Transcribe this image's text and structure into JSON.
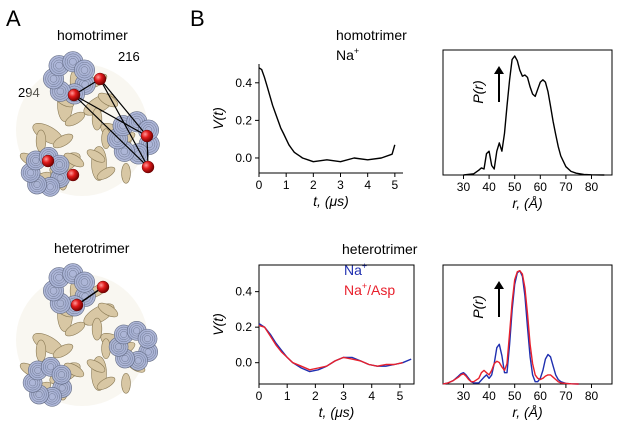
{
  "panels": {
    "a_label": "A",
    "b_label": "B",
    "homo_title": "homotrimer",
    "hetero_title": "heterotrimer",
    "homo_cond": "Na",
    "homo_cond_sup": "+",
    "hetero_cond_1": "Na",
    "hetero_cond_1_sup": "+",
    "hetero_cond_2": "Na",
    "hetero_cond_2_sup": "+",
    "hetero_cond_2_suffix": "/Asp",
    "residue_1": "216",
    "residue_2": "294"
  },
  "colors": {
    "na": "#1f2fb0",
    "na_asp": "#e8202c",
    "homo_trace": "#000000",
    "helix_blue": "#a9b3d6",
    "helix_tan": "#d8c7a4",
    "spin_label": "#d11a1a"
  },
  "chart_data": [
    {
      "id": "homo_time",
      "type": "line",
      "xlabel": "t, (μs)",
      "ylabel": "V(t)",
      "xlim": [
        0,
        5.3
      ],
      "ylim": [
        -0.08,
        0.5
      ],
      "xticks": [
        "0",
        "1",
        "2",
        "3",
        "4",
        "5"
      ],
      "yticks": [
        "0.0",
        "0.2",
        "0.4"
      ],
      "series": [
        {
          "x": [
            0,
            0.1,
            0.2,
            0.3,
            0.4,
            0.5,
            0.6,
            0.7,
            0.8,
            0.9,
            1.0,
            1.1,
            1.2,
            1.3,
            1.4,
            1.5,
            1.6,
            1.8,
            2.0,
            2.5,
            3.0,
            3.5,
            4.0,
            4.5,
            4.9,
            5.0
          ],
          "y": [
            0.48,
            0.47,
            0.43,
            0.38,
            0.33,
            0.28,
            0.24,
            0.2,
            0.16,
            0.13,
            0.1,
            0.07,
            0.05,
            0.03,
            0.02,
            0.01,
            0.0,
            -0.01,
            -0.02,
            -0.01,
            -0.02,
            0.0,
            -0.01,
            0.0,
            0.02,
            0.07
          ]
        }
      ]
    },
    {
      "id": "homo_dist",
      "type": "line",
      "xlabel": "r, (Å)",
      "ylabel": "P(r)",
      "xlim": [
        22,
        88
      ],
      "ylim": [
        0,
        1.05
      ],
      "xticks": [
        "30",
        "40",
        "50",
        "60",
        "70",
        "80"
      ],
      "series": [
        {
          "x": [
            30,
            34,
            36,
            37,
            38,
            39,
            40,
            41,
            42,
            43,
            44,
            45,
            46,
            47,
            48,
            49,
            50,
            51,
            52,
            53,
            54,
            55,
            56,
            57,
            58,
            59,
            60,
            61,
            62,
            63,
            64,
            65,
            66,
            67,
            68,
            70,
            72,
            74,
            77,
            80,
            85
          ],
          "y": [
            0,
            0.01,
            0.04,
            0.06,
            0.05,
            0.18,
            0.2,
            0.08,
            0.05,
            0.2,
            0.27,
            0.2,
            0.35,
            0.58,
            0.8,
            0.97,
            1.0,
            0.96,
            0.88,
            0.83,
            0.84,
            0.82,
            0.74,
            0.68,
            0.66,
            0.72,
            0.78,
            0.8,
            0.78,
            0.7,
            0.58,
            0.45,
            0.34,
            0.24,
            0.16,
            0.07,
            0.03,
            0.015,
            0.005,
            0.002,
            0
          ]
        }
      ]
    },
    {
      "id": "hetero_time",
      "type": "line",
      "xlabel": "t, (μs)",
      "ylabel": "V(t)",
      "xlim": [
        0,
        5.5
      ],
      "ylim": [
        -0.12,
        0.55
      ],
      "xticks": [
        "0",
        "1",
        "2",
        "3",
        "4",
        "5"
      ],
      "yticks": [
        "0.0",
        "0.2",
        "0.4"
      ],
      "series": [
        {
          "name": "Na+",
          "color_key": "na",
          "x": [
            0,
            0.2,
            0.4,
            0.6,
            0.8,
            1.0,
            1.2,
            1.5,
            1.8,
            2.1,
            2.4,
            2.7,
            3.0,
            3.3,
            3.6,
            3.9,
            4.2,
            4.5,
            4.8,
            5.1,
            5.4
          ],
          "y": [
            0.22,
            0.2,
            0.16,
            0.11,
            0.07,
            0.03,
            0.0,
            -0.03,
            -0.05,
            -0.04,
            -0.02,
            0.01,
            0.03,
            0.03,
            0.01,
            -0.01,
            -0.02,
            -0.02,
            -0.01,
            0.0,
            0.02
          ]
        },
        {
          "name": "Na+/Asp",
          "color_key": "na_asp",
          "x": [
            0,
            0.2,
            0.4,
            0.6,
            0.8,
            1.0,
            1.2,
            1.5,
            1.8,
            2.1,
            2.4,
            2.7,
            3.0,
            3.3,
            3.6,
            3.9,
            4.2,
            4.5,
            4.8,
            5.1
          ],
          "y": [
            0.21,
            0.2,
            0.15,
            0.1,
            0.06,
            0.03,
            0.0,
            -0.02,
            -0.04,
            -0.03,
            -0.02,
            0.01,
            0.03,
            0.02,
            0.01,
            -0.01,
            -0.02,
            -0.01,
            -0.01,
            0.0
          ]
        }
      ]
    },
    {
      "id": "hetero_dist",
      "type": "line",
      "xlabel": "r, (Å)",
      "ylabel": "P(r)",
      "xlim": [
        22,
        88
      ],
      "ylim": [
        0,
        1.05
      ],
      "xticks": [
        "30",
        "40",
        "50",
        "60",
        "70",
        "80"
      ],
      "series": [
        {
          "name": "Na+",
          "color_key": "na",
          "x": [
            22,
            24,
            26,
            28,
            29,
            30,
            31,
            32,
            33,
            34,
            36,
            38,
            39,
            40,
            41,
            42,
            43,
            44,
            45,
            46,
            47,
            48,
            49,
            50,
            51,
            52,
            53,
            54,
            55,
            56,
            57,
            58,
            59,
            60,
            61,
            62,
            63,
            64,
            65,
            66,
            67,
            68,
            70,
            72,
            75
          ],
          "y": [
            0,
            0.01,
            0.03,
            0.07,
            0.09,
            0.1,
            0.08,
            0.05,
            0.02,
            0.01,
            0.01,
            0.06,
            0.08,
            0.05,
            0.08,
            0.18,
            0.32,
            0.35,
            0.25,
            0.1,
            0.1,
            0.35,
            0.65,
            0.88,
            0.98,
            1.0,
            0.95,
            0.78,
            0.5,
            0.24,
            0.08,
            0.02,
            0.02,
            0.05,
            0.12,
            0.22,
            0.26,
            0.24,
            0.16,
            0.08,
            0.04,
            0.02,
            0.005,
            0.002,
            0
          ]
        },
        {
          "name": "Na+/Asp",
          "color_key": "na_asp",
          "x": [
            22,
            24,
            26,
            28,
            29,
            30,
            31,
            32,
            33,
            34,
            36,
            37,
            38,
            39,
            40,
            41,
            42,
            43,
            44,
            45,
            46,
            47,
            48,
            49,
            50,
            51,
            52,
            53,
            54,
            55,
            56,
            57,
            58,
            59,
            60,
            61,
            62,
            63,
            64,
            65,
            66,
            67,
            68,
            70,
            72,
            75
          ],
          "y": [
            0,
            0.01,
            0.03,
            0.06,
            0.08,
            0.09,
            0.07,
            0.04,
            0.02,
            0.02,
            0.05,
            0.1,
            0.12,
            0.1,
            0.08,
            0.12,
            0.18,
            0.2,
            0.19,
            0.15,
            0.12,
            0.18,
            0.45,
            0.72,
            0.92,
            0.99,
            1.0,
            0.97,
            0.85,
            0.62,
            0.35,
            0.18,
            0.08,
            0.05,
            0.04,
            0.05,
            0.07,
            0.08,
            0.08,
            0.06,
            0.04,
            0.02,
            0.01,
            0.005,
            0.002,
            0
          ]
        }
      ]
    }
  ]
}
